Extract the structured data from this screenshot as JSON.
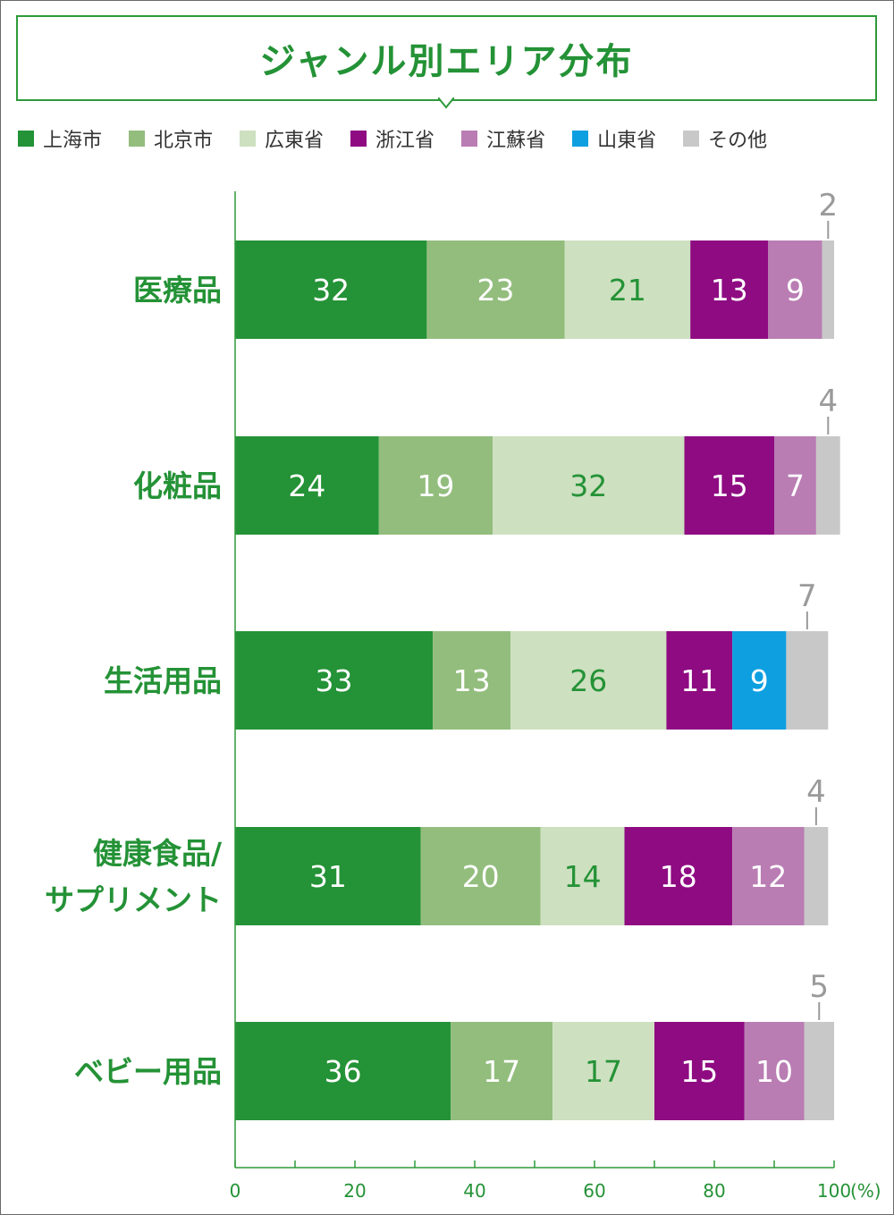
{
  "title": "ジャンル別エリア分布",
  "chart_data": {
    "type": "bar",
    "orientation": "horizontal",
    "stacked": true,
    "categories": [
      [
        "医療品"
      ],
      [
        "化粧品"
      ],
      [
        "生活用品"
      ],
      [
        "健康食品/",
        "サプリメント"
      ],
      [
        "ベビー用品"
      ]
    ],
    "series": [
      {
        "name": "上海市",
        "color": "#249236",
        "label_color": "#ffffff",
        "values": [
          32,
          24,
          33,
          31,
          36
        ]
      },
      {
        "name": "北京市",
        "color": "#93bd7d",
        "label_color": "#ffffff",
        "values": [
          23,
          19,
          13,
          20,
          17
        ]
      },
      {
        "name": "広東省",
        "color": "#cde0c0",
        "label_color": "#249236",
        "values": [
          21,
          32,
          26,
          14,
          17
        ]
      },
      {
        "name": "浙江省",
        "color": "#8f0b82",
        "label_color": "#ffffff",
        "values": [
          13,
          15,
          11,
          18,
          15
        ]
      },
      {
        "name": "江蘇省",
        "color": "#b97db3",
        "label_color": "#ffffff",
        "values": [
          9,
          7,
          0,
          12,
          10
        ]
      },
      {
        "name": "山東省",
        "color": "#0e9fe0",
        "label_color": "#ffffff",
        "values": [
          0,
          0,
          9,
          0,
          0
        ]
      },
      {
        "name": "その他",
        "color": "#c8c8c8",
        "label_color": "#9a9a9a",
        "values": [
          2,
          4,
          7,
          4,
          5
        ],
        "label_outside": true
      }
    ],
    "xlim": [
      0,
      100
    ],
    "x_ticks": [
      "0",
      "20",
      "40",
      "60",
      "80",
      "100"
    ],
    "x_unit": "(%)",
    "legend_position": "top"
  }
}
